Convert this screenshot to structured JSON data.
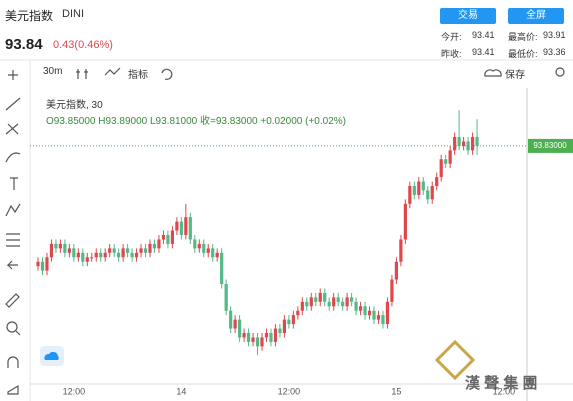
{
  "header": {
    "name": "美元指数",
    "code": "DINI",
    "price": "93.84",
    "change": "0.43(0.46%)",
    "buttons": [
      "交易",
      "全屏"
    ],
    "stats": [
      [
        "今开:",
        "93.41"
      ],
      [
        "最高价:",
        "93.91"
      ],
      [
        "昨收:",
        "93.41"
      ],
      [
        "最低价:",
        "93.36"
      ]
    ]
  },
  "toolbar": {
    "interval": "30m",
    "indicators": "指标",
    "save": "保存"
  },
  "legend": {
    "title": "美元指数, 30",
    "ohlc": "O93.85000 H93.89000 L93.81000 收=93.83000 +0.02000 (+0.02%)"
  },
  "watermark": "漢 聲 集 團",
  "chart_data": {
    "type": "candlestick",
    "up_color": "#e0474c",
    "down_color": "#53b987",
    "ylim": [
      93.3,
      93.96
    ],
    "last_price": {
      "value": 93.83,
      "label": "93.83000"
    },
    "categories": [
      null,
      null,
      null,
      null,
      null,
      null,
      null,
      null,
      "12:00",
      null,
      null,
      null,
      null,
      null,
      null,
      null,
      null,
      null,
      null,
      null,
      null,
      null,
      null,
      null,
      null,
      null,
      null,
      null,
      null,
      null,
      null,
      null,
      "14",
      null,
      null,
      null,
      null,
      null,
      null,
      null,
      null,
      null,
      null,
      null,
      null,
      null,
      null,
      null,
      null,
      null,
      null,
      null,
      null,
      null,
      null,
      null,
      "12:00",
      null,
      null,
      null,
      null,
      null,
      null,
      null,
      null,
      null,
      null,
      null,
      null,
      null,
      null,
      null,
      null,
      null,
      null,
      null,
      null,
      null,
      null,
      null,
      "15",
      null,
      null,
      null,
      null,
      null,
      null,
      null,
      null,
      null,
      null,
      null,
      null,
      null,
      null,
      null,
      null,
      null,
      null,
      null,
      null,
      null,
      null,
      null,
      "12:00",
      null,
      null,
      null,
      null,
      null
    ],
    "open": [
      93.56,
      93.57,
      93.55,
      93.58,
      93.61,
      93.6,
      93.61,
      93.59,
      93.6,
      93.58,
      93.59,
      93.57,
      93.58,
      93.58,
      93.59,
      93.58,
      93.59,
      93.6,
      93.59,
      93.58,
      93.6,
      93.59,
      93.58,
      93.59,
      93.6,
      93.59,
      93.61,
      93.6,
      93.62,
      93.63,
      93.61,
      93.64,
      93.66,
      93.63,
      93.67,
      93.62,
      93.6,
      93.61,
      93.59,
      93.6,
      93.58,
      93.59,
      93.52,
      93.46,
      93.42,
      93.44,
      93.4,
      93.41,
      93.39,
      93.4,
      93.38,
      93.4,
      93.41,
      93.39,
      93.42,
      93.41,
      93.44,
      93.43,
      93.45,
      93.46,
      93.48,
      93.47,
      93.49,
      93.48,
      93.5,
      93.48,
      93.47,
      93.49,
      93.48,
      93.47,
      93.49,
      93.48,
      93.46,
      93.47,
      93.45,
      93.46,
      93.44,
      93.45,
      93.43,
      93.48,
      93.53,
      93.57,
      93.62,
      93.7,
      93.74,
      93.72,
      93.75,
      93.73,
      93.71,
      93.74,
      93.76,
      93.8,
      93.79,
      93.82,
      93.85,
      93.83,
      93.84,
      93.82,
      93.85,
      null,
      null,
      null,
      null,
      null,
      null,
      null,
      null,
      null,
      null,
      null
    ],
    "high": [
      93.58,
      93.58,
      93.59,
      93.62,
      93.62,
      93.62,
      93.62,
      93.61,
      93.61,
      93.6,
      93.6,
      93.59,
      93.59,
      93.6,
      93.6,
      93.6,
      93.61,
      93.61,
      93.6,
      93.61,
      93.61,
      93.6,
      93.6,
      93.61,
      93.61,
      93.62,
      93.62,
      93.63,
      93.64,
      93.64,
      93.65,
      93.67,
      93.67,
      93.7,
      93.68,
      93.63,
      93.62,
      93.62,
      93.61,
      93.61,
      93.6,
      93.6,
      93.53,
      93.47,
      93.45,
      93.45,
      93.42,
      93.42,
      93.41,
      93.41,
      93.41,
      93.42,
      93.42,
      93.43,
      93.43,
      93.45,
      93.45,
      93.46,
      93.47,
      93.49,
      93.49,
      93.5,
      93.5,
      93.51,
      93.51,
      93.49,
      93.5,
      93.5,
      93.49,
      93.5,
      93.5,
      93.49,
      93.48,
      93.48,
      93.47,
      93.47,
      93.46,
      93.46,
      93.49,
      93.54,
      93.58,
      93.63,
      93.71,
      93.75,
      93.75,
      93.76,
      93.76,
      93.74,
      93.75,
      93.77,
      93.81,
      93.81,
      93.83,
      93.86,
      93.91,
      93.85,
      93.85,
      93.86,
      93.89,
      null,
      null,
      null,
      null,
      null,
      null,
      null,
      null,
      null,
      null,
      null
    ],
    "low": [
      93.55,
      93.54,
      93.54,
      93.57,
      93.59,
      93.59,
      93.58,
      93.58,
      93.57,
      93.57,
      93.56,
      93.56,
      93.57,
      93.57,
      93.57,
      93.57,
      93.58,
      93.58,
      93.57,
      93.57,
      93.58,
      93.57,
      93.57,
      93.58,
      93.58,
      93.58,
      93.59,
      93.59,
      93.61,
      93.6,
      93.6,
      93.63,
      93.62,
      93.62,
      93.61,
      93.59,
      93.59,
      93.58,
      93.58,
      93.57,
      93.57,
      93.51,
      93.45,
      93.41,
      93.41,
      93.39,
      93.39,
      93.38,
      93.38,
      93.36,
      93.37,
      93.39,
      93.38,
      93.38,
      93.4,
      93.4,
      93.42,
      93.42,
      93.44,
      93.45,
      93.46,
      93.46,
      93.47,
      93.47,
      93.47,
      93.46,
      93.46,
      93.47,
      93.46,
      93.46,
      93.47,
      93.45,
      93.45,
      93.44,
      93.44,
      93.43,
      93.43,
      93.42,
      93.42,
      93.47,
      93.52,
      93.56,
      93.61,
      93.69,
      93.71,
      93.71,
      93.72,
      93.7,
      93.7,
      93.73,
      93.75,
      93.78,
      93.78,
      93.81,
      93.82,
      93.82,
      93.81,
      93.81,
      93.81,
      null,
      null,
      null,
      null,
      null,
      null,
      null,
      null,
      null,
      null,
      null
    ],
    "close": [
      93.57,
      93.55,
      93.58,
      93.61,
      93.6,
      93.61,
      93.59,
      93.6,
      93.58,
      93.59,
      93.57,
      93.58,
      93.58,
      93.59,
      93.58,
      93.59,
      93.6,
      93.59,
      93.58,
      93.6,
      93.59,
      93.58,
      93.59,
      93.6,
      93.59,
      93.61,
      93.6,
      93.62,
      93.63,
      93.61,
      93.64,
      93.66,
      93.63,
      93.67,
      93.62,
      93.6,
      93.61,
      93.59,
      93.6,
      93.58,
      93.59,
      93.52,
      93.46,
      93.42,
      93.44,
      93.4,
      93.41,
      93.39,
      93.4,
      93.38,
      93.4,
      93.41,
      93.39,
      93.42,
      93.41,
      93.44,
      93.43,
      93.45,
      93.46,
      93.48,
      93.47,
      93.49,
      93.48,
      93.5,
      93.48,
      93.47,
      93.49,
      93.48,
      93.47,
      93.49,
      93.48,
      93.46,
      93.47,
      93.45,
      93.46,
      93.44,
      93.45,
      93.43,
      93.48,
      93.53,
      93.57,
      93.62,
      93.7,
      93.74,
      93.72,
      93.75,
      93.73,
      93.71,
      93.74,
      93.76,
      93.8,
      93.79,
      93.82,
      93.85,
      93.83,
      93.84,
      93.82,
      93.85,
      93.83,
      null,
      null,
      null,
      null,
      null,
      null,
      null,
      null,
      null,
      null,
      null
    ]
  }
}
